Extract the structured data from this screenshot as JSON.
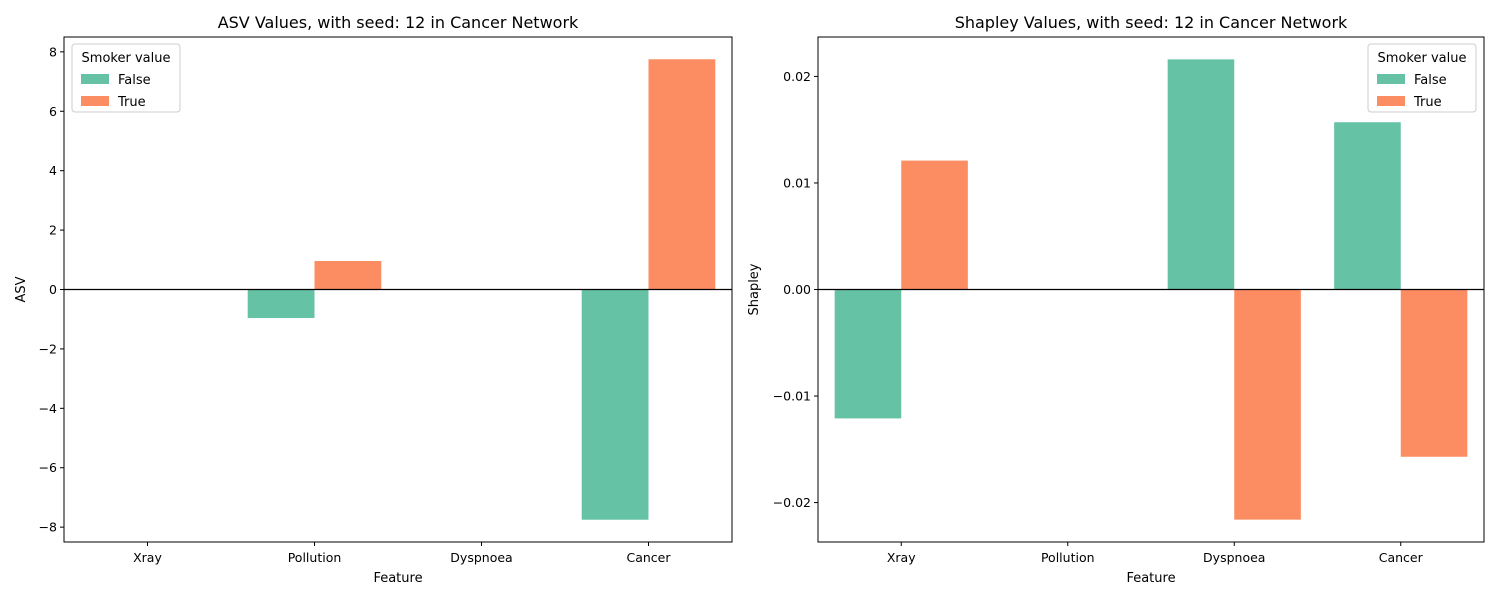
{
  "chart_data": [
    {
      "type": "bar",
      "title": "ASV Values, with seed: 12 in Cancer Network",
      "xlabel": "Feature",
      "ylabel": "ASV",
      "categories": [
        "Xray",
        "Pollution",
        "Dyspnoea",
        "Cancer"
      ],
      "series": [
        {
          "name": "False",
          "values": [
            0,
            -0.96,
            0,
            -7.75
          ]
        },
        {
          "name": "True",
          "values": [
            0,
            0.96,
            0,
            7.75
          ]
        }
      ],
      "ylim": [
        -8.5,
        8.5
      ],
      "yticks": [
        -8,
        -6,
        -4,
        -2,
        0,
        2,
        4,
        6,
        8
      ],
      "ytick_labels": [
        "−8",
        "−6",
        "−4",
        "−2",
        "0",
        "2",
        "4",
        "6",
        "8"
      ],
      "legend": {
        "title": "Smoker value",
        "position": "top-left"
      },
      "colors": {
        "False": "#66c2a5",
        "True": "#fc8d62"
      },
      "grid": false
    },
    {
      "type": "bar",
      "title": "Shapley Values, with seed: 12 in Cancer Network",
      "xlabel": "Feature",
      "ylabel": "Shapley",
      "categories": [
        "Xray",
        "Pollution",
        "Dyspnoea",
        "Cancer"
      ],
      "series": [
        {
          "name": "False",
          "values": [
            -0.0121,
            0,
            0.0216,
            0.0157
          ]
        },
        {
          "name": "True",
          "values": [
            0.0121,
            0,
            -0.0216,
            -0.0157
          ]
        }
      ],
      "ylim": [
        -0.0237,
        0.0237
      ],
      "yticks": [
        -0.02,
        -0.01,
        0.0,
        0.01,
        0.02
      ],
      "ytick_labels": [
        "−0.02",
        "−0.01",
        "0.00",
        "0.01",
        "0.02"
      ],
      "legend": {
        "title": "Smoker value",
        "position": "top-right"
      },
      "colors": {
        "False": "#66c2a5",
        "True": "#fc8d62"
      },
      "grid": false
    }
  ]
}
